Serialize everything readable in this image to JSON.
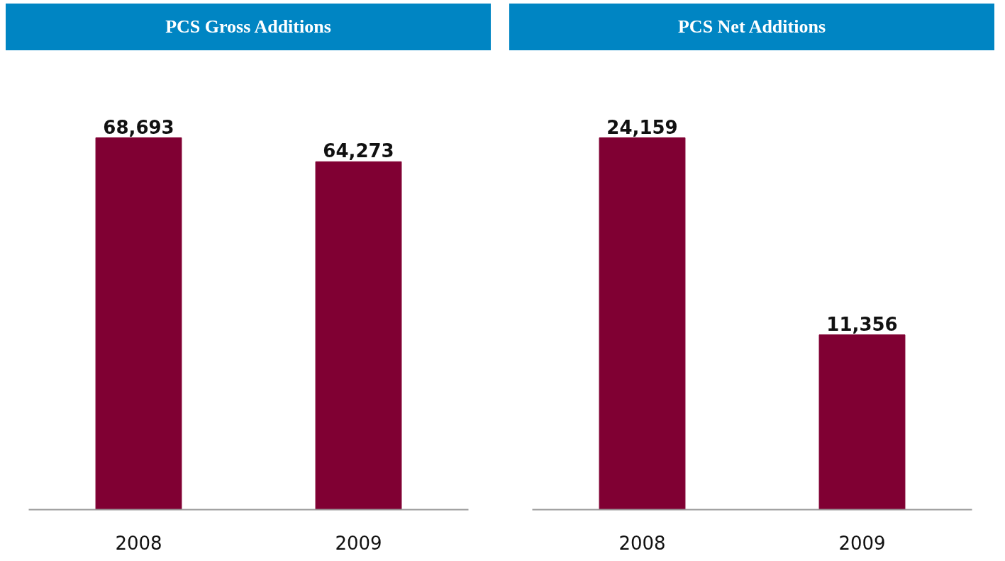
{
  "chart_data": [
    {
      "type": "bar",
      "title": "PCS Gross Additions",
      "categories": [
        "2008",
        "2009"
      ],
      "values": [
        68693,
        64273
      ],
      "value_labels": [
        "68,693",
        "64,273"
      ],
      "color": "#800033"
    },
    {
      "type": "bar",
      "title": "PCS Net Additions",
      "categories": [
        "2008",
        "2009"
      ],
      "values": [
        24159,
        11356
      ],
      "value_labels": [
        "24,159",
        "11,356"
      ],
      "color": "#800033"
    }
  ]
}
